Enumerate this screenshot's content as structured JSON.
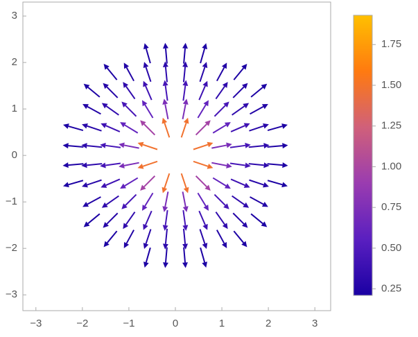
{
  "chart_data": {
    "type": "vector",
    "xlim": [
      -3.28,
      3.34
    ],
    "ylim": [
      -3.34,
      3.3
    ],
    "xticks": [
      {
        "value": -3,
        "label": "−3"
      },
      {
        "value": -2,
        "label": "−2"
      },
      {
        "value": -1,
        "label": "−1"
      },
      0,
      1,
      2,
      3
    ],
    "yticks": [
      {
        "value": -3,
        "label": "−3"
      },
      {
        "value": -2,
        "label": "−2"
      },
      {
        "value": -1,
        "label": "−1"
      },
      0,
      1,
      2,
      3
    ],
    "colormap": [
      "#1a00a3",
      "#5a1fc0",
      "#9a3cb0",
      "#d0607a",
      "#ff7a10",
      "#ffc000"
    ],
    "clim": [
      0.21,
      1.93
    ],
    "cticks": [
      0.25,
      {
        "value": 0.5,
        "label": "0.50"
      },
      0.75,
      {
        "value": 1,
        "label": "1.00"
      },
      1.25,
      {
        "value": 1.5,
        "label": "1.50"
      },
      1.75
    ],
    "vectors": [
      [
        0.2,
        0.6,
        0.47,
        1.41
      ],
      [
        0.2,
        1.0,
        0.14,
        0.72
      ],
      [
        0.2,
        1.4,
        0.06,
        0.44
      ],
      [
        0.2,
        1.8,
        0.03,
        0.31
      ],
      [
        0.2,
        2.2,
        0.02,
        0.23
      ],
      [
        0.6,
        0.2,
        1.41,
        0.47
      ],
      [
        0.6,
        0.6,
        0.68,
        0.68
      ],
      [
        0.6,
        1.0,
        0.31,
        0.51
      ],
      [
        0.6,
        1.4,
        0.16,
        0.37
      ],
      [
        0.6,
        1.8,
        0.09,
        0.27
      ],
      [
        0.6,
        2.2,
        0.06,
        0.21
      ],
      [
        1.0,
        0.2,
        0.72,
        0.14
      ],
      [
        1.0,
        0.6,
        0.51,
        0.31
      ],
      [
        1.0,
        1.0,
        0.32,
        0.32
      ],
      [
        1.0,
        1.4,
        0.19,
        0.27
      ],
      [
        1.0,
        1.8,
        0.12,
        0.22
      ],
      [
        1.4,
        0.2,
        0.44,
        0.06
      ],
      [
        1.4,
        0.6,
        0.37,
        0.16
      ],
      [
        1.4,
        1.0,
        0.27,
        0.19
      ],
      [
        1.4,
        1.4,
        0.19,
        0.19
      ],
      [
        1.4,
        1.8,
        0.14,
        0.17
      ],
      [
        1.8,
        0.2,
        0.31,
        0.03
      ],
      [
        1.8,
        0.6,
        0.27,
        0.09
      ],
      [
        1.8,
        1.0,
        0.22,
        0.12
      ],
      [
        1.8,
        1.4,
        0.17,
        0.14
      ],
      [
        2.2,
        0.2,
        0.23,
        0.02
      ],
      [
        2.2,
        0.6,
        0.21,
        0.06
      ],
      [
        -0.2,
        0.6,
        -0.47,
        1.41
      ],
      [
        -0.2,
        1.0,
        -0.14,
        0.72
      ],
      [
        -0.2,
        1.4,
        -0.06,
        0.44
      ],
      [
        -0.2,
        1.8,
        -0.03,
        0.31
      ],
      [
        -0.2,
        2.2,
        -0.02,
        0.23
      ],
      [
        -0.6,
        0.2,
        -1.41,
        0.47
      ],
      [
        -0.6,
        0.6,
        -0.68,
        0.68
      ],
      [
        -0.6,
        1.0,
        -0.31,
        0.51
      ],
      [
        -0.6,
        1.4,
        -0.16,
        0.37
      ],
      [
        -0.6,
        1.8,
        -0.09,
        0.27
      ],
      [
        -0.6,
        2.2,
        -0.06,
        0.21
      ],
      [
        -1.0,
        0.2,
        -0.72,
        0.14
      ],
      [
        -1.0,
        0.6,
        -0.51,
        0.31
      ],
      [
        -1.0,
        1.0,
        -0.32,
        0.32
      ],
      [
        -1.0,
        1.4,
        -0.19,
        0.27
      ],
      [
        -1.0,
        1.8,
        -0.12,
        0.22
      ],
      [
        -1.4,
        0.2,
        -0.44,
        0.06
      ],
      [
        -1.4,
        0.6,
        -0.37,
        0.16
      ],
      [
        -1.4,
        1.0,
        -0.27,
        0.19
      ],
      [
        -1.4,
        1.4,
        -0.19,
        0.19
      ],
      [
        -1.4,
        1.8,
        -0.14,
        0.17
      ],
      [
        -1.8,
        0.2,
        -0.31,
        0.03
      ],
      [
        -1.8,
        0.6,
        -0.27,
        0.09
      ],
      [
        -1.8,
        1.0,
        -0.22,
        0.12
      ],
      [
        -1.8,
        1.4,
        -0.17,
        0.14
      ],
      [
        -2.2,
        0.2,
        -0.23,
        0.02
      ],
      [
        -2.2,
        0.6,
        -0.21,
        0.06
      ],
      [
        -0.2,
        -0.6,
        -0.47,
        -1.41
      ],
      [
        -0.2,
        -1.0,
        -0.14,
        -0.72
      ],
      [
        -0.2,
        -1.4,
        -0.06,
        -0.44
      ],
      [
        -0.2,
        -1.8,
        -0.03,
        -0.31
      ],
      [
        -0.2,
        -2.2,
        -0.02,
        -0.23
      ],
      [
        -0.6,
        -0.2,
        -1.41,
        -0.47
      ],
      [
        -0.6,
        -0.6,
        -0.68,
        -0.68
      ],
      [
        -0.6,
        -1.0,
        -0.31,
        -0.51
      ],
      [
        -0.6,
        -1.4,
        -0.16,
        -0.37
      ],
      [
        -0.6,
        -1.8,
        -0.09,
        -0.27
      ],
      [
        -0.6,
        -2.2,
        -0.06,
        -0.21
      ],
      [
        -1.0,
        -0.2,
        -0.72,
        -0.14
      ],
      [
        -1.0,
        -0.6,
        -0.51,
        -0.31
      ],
      [
        -1.0,
        -1.0,
        -0.32,
        -0.32
      ],
      [
        -1.0,
        -1.4,
        -0.19,
        -0.27
      ],
      [
        -1.0,
        -1.8,
        -0.12,
        -0.22
      ],
      [
        -1.4,
        -0.2,
        -0.44,
        -0.06
      ],
      [
        -1.4,
        -0.6,
        -0.37,
        -0.16
      ],
      [
        -1.4,
        -1.0,
        -0.27,
        -0.19
      ],
      [
        -1.4,
        -1.4,
        -0.19,
        -0.19
      ],
      [
        -1.4,
        -1.8,
        -0.14,
        -0.17
      ],
      [
        -1.8,
        -0.2,
        -0.31,
        -0.03
      ],
      [
        -1.8,
        -0.6,
        -0.27,
        -0.09
      ],
      [
        -1.8,
        -1.0,
        -0.22,
        -0.12
      ],
      [
        -1.8,
        -1.4,
        -0.17,
        -0.14
      ],
      [
        -2.2,
        -0.2,
        -0.23,
        -0.02
      ],
      [
        -2.2,
        -0.6,
        -0.21,
        -0.06
      ],
      [
        0.2,
        -0.6,
        0.47,
        -1.41
      ],
      [
        0.2,
        -1.0,
        0.14,
        -0.72
      ],
      [
        0.2,
        -1.4,
        0.06,
        -0.44
      ],
      [
        0.2,
        -1.8,
        0.03,
        -0.31
      ],
      [
        0.2,
        -2.2,
        0.02,
        -0.23
      ],
      [
        0.6,
        -0.2,
        1.41,
        -0.47
      ],
      [
        0.6,
        -0.6,
        0.68,
        -0.68
      ],
      [
        0.6,
        -1.0,
        0.31,
        -0.51
      ],
      [
        0.6,
        -1.4,
        0.16,
        -0.37
      ],
      [
        0.6,
        -1.8,
        0.09,
        -0.27
      ],
      [
        0.6,
        -2.2,
        0.06,
        -0.21
      ],
      [
        1.0,
        -0.2,
        0.72,
        -0.14
      ],
      [
        1.0,
        -0.6,
        0.51,
        -0.31
      ],
      [
        1.0,
        -1.0,
        0.32,
        -0.32
      ],
      [
        1.0,
        -1.4,
        0.19,
        -0.27
      ],
      [
        1.0,
        -1.8,
        0.12,
        -0.22
      ],
      [
        1.4,
        -0.2,
        0.44,
        -0.06
      ],
      [
        1.4,
        -0.6,
        0.37,
        -0.16
      ],
      [
        1.4,
        -1.0,
        0.27,
        -0.19
      ],
      [
        1.4,
        -1.4,
        0.19,
        -0.19
      ],
      [
        1.4,
        -1.8,
        0.14,
        -0.17
      ],
      [
        1.8,
        -0.2,
        0.31,
        -0.03
      ],
      [
        1.8,
        -0.6,
        0.27,
        -0.09
      ],
      [
        1.8,
        -1.0,
        0.22,
        -0.12
      ],
      [
        1.8,
        -1.4,
        0.17,
        -0.14
      ],
      [
        2.2,
        -0.2,
        0.23,
        -0.02
      ],
      [
        2.2,
        -0.6,
        0.21,
        -0.06
      ]
    ]
  }
}
